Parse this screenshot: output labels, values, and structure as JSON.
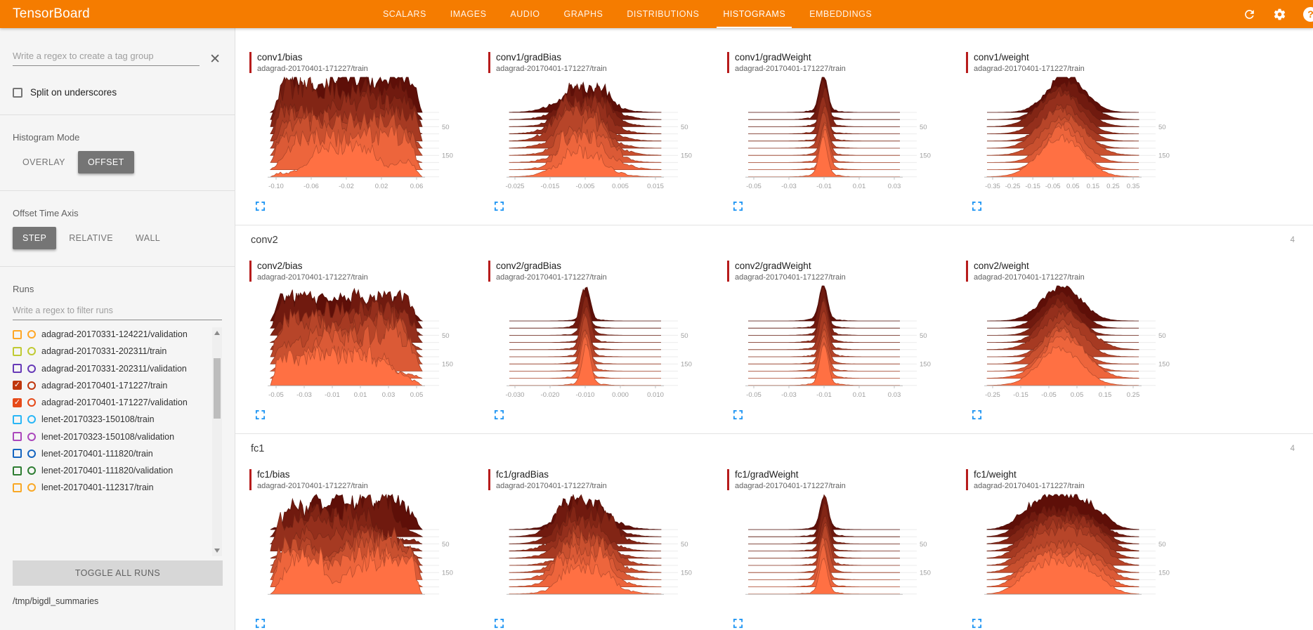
{
  "palette": {
    "header_bg": "#f57c00",
    "accent_red": "#b71c1c",
    "hist_back": "#5e0f08",
    "hist_front": "#ff7043",
    "expand_blue": "#2196f3",
    "selected_button_bg": "#757575"
  },
  "header": {
    "title": "TensorBoard",
    "help_glyph": "?",
    "tabs": [
      {
        "label": "SCALARS",
        "active": false
      },
      {
        "label": "IMAGES",
        "active": false
      },
      {
        "label": "AUDIO",
        "active": false
      },
      {
        "label": "GRAPHS",
        "active": false
      },
      {
        "label": "DISTRIBUTIONS",
        "active": false
      },
      {
        "label": "HISTOGRAMS",
        "active": true
      },
      {
        "label": "EMBEDDINGS",
        "active": false
      }
    ]
  },
  "sidebar": {
    "tag_regex_placeholder": "Write a regex to create a tag group",
    "clear_icon": "✕",
    "split_label": "Split on underscores",
    "histogram_mode": {
      "label": "Histogram Mode",
      "options": [
        "OVERLAY",
        "OFFSET"
      ],
      "selected": "OFFSET"
    },
    "offset_time_axis": {
      "label": "Offset Time Axis",
      "options": [
        "STEP",
        "RELATIVE",
        "WALL"
      ],
      "selected": "STEP"
    },
    "runs": {
      "label": "Runs",
      "filter_placeholder": "Write a regex to filter runs",
      "toggle_all_label": "TOGGLE ALL RUNS",
      "items": [
        {
          "label": "adagrad-20170331-124221/validation",
          "color": "#ffa726",
          "checked": false
        },
        {
          "label": "adagrad-20170331-202311/train",
          "color": "#c0ca33",
          "checked": false
        },
        {
          "label": "adagrad-20170331-202311/validation",
          "color": "#673ab7",
          "checked": false
        },
        {
          "label": "adagrad-20170401-171227/train",
          "color": "#bf360c",
          "checked": true
        },
        {
          "label": "adagrad-20170401-171227/validation",
          "color": "#e64a19",
          "checked": true
        },
        {
          "label": "lenet-20170323-150108/train",
          "color": "#29b6f6",
          "checked": false
        },
        {
          "label": "lenet-20170323-150108/validation",
          "color": "#ab47bc",
          "checked": false
        },
        {
          "label": "lenet-20170401-111820/train",
          "color": "#1565c0",
          "checked": false
        },
        {
          "label": "lenet-20170401-111820/validation",
          "color": "#2e7d32",
          "checked": false
        },
        {
          "label": "lenet-20170401-112317/train",
          "color": "#f9a825",
          "checked": false
        }
      ]
    },
    "log_dir": "/tmp/bigdl_summaries"
  },
  "main": {
    "sections": [
      {
        "cards": [
          {
            "title": "conv1/bias",
            "run": "adagrad-20170401-171227/train",
            "shape": "noisy",
            "seed": 11,
            "x_ticks": [
              "-0.10",
              "-0.06",
              "-0.02",
              "0.02",
              "0.06"
            ],
            "y_labels": [
              "50",
              "150"
            ]
          },
          {
            "title": "conv1/gradBias",
            "run": "adagrad-20170401-171227/train",
            "shape": "multi",
            "seed": 12,
            "x_ticks": [
              "-0.025",
              "-0.015",
              "-0.005",
              "0.005",
              "0.015"
            ],
            "y_labels": [
              "50",
              "150"
            ]
          },
          {
            "title": "conv1/gradWeight",
            "run": "adagrad-20170401-171227/train",
            "shape": "spike",
            "seed": 13,
            "x_ticks": [
              "-0.05",
              "-0.03",
              "-0.01",
              "0.01",
              "0.03"
            ],
            "y_labels": [
              "50",
              "150"
            ]
          },
          {
            "title": "conv1/weight",
            "run": "adagrad-20170401-171227/train",
            "shape": "bell",
            "seed": 14,
            "x_ticks": [
              "-0.35",
              "-0.25",
              "-0.15",
              "-0.05",
              "0.05",
              "0.15",
              "0.25",
              "0.35"
            ],
            "y_labels": [
              "50",
              "150"
            ]
          }
        ]
      },
      {
        "name": "conv2",
        "count": "4",
        "cards": [
          {
            "title": "conv2/bias",
            "run": "adagrad-20170401-171227/train",
            "shape": "noisy",
            "seed": 21,
            "x_ticks": [
              "-0.05",
              "-0.03",
              "-0.01",
              "0.01",
              "0.03",
              "0.05"
            ],
            "y_labels": [
              "50",
              "150"
            ]
          },
          {
            "title": "conv2/gradBias",
            "run": "adagrad-20170401-171227/train",
            "shape": "spike",
            "seed": 22,
            "x_ticks": [
              "-0.030",
              "-0.020",
              "-0.010",
              "0.000",
              "0.010"
            ],
            "y_labels": [
              "50",
              "150"
            ]
          },
          {
            "title": "conv2/gradWeight",
            "run": "adagrad-20170401-171227/train",
            "shape": "spike",
            "seed": 23,
            "x_ticks": [
              "-0.05",
              "-0.03",
              "-0.01",
              "0.01",
              "0.03"
            ],
            "y_labels": [
              "50",
              "150"
            ]
          },
          {
            "title": "conv2/weight",
            "run": "adagrad-20170401-171227/train",
            "shape": "bell",
            "seed": 24,
            "x_ticks": [
              "-0.25",
              "-0.15",
              "-0.05",
              "0.05",
              "0.15",
              "0.25"
            ],
            "y_labels": [
              "50",
              "150"
            ]
          }
        ]
      },
      {
        "name": "fc1",
        "count": "4",
        "cards": [
          {
            "title": "fc1/bias",
            "run": "adagrad-20170401-171227/train",
            "shape": "noisy",
            "seed": 31,
            "x_ticks": [],
            "y_labels": [
              "50",
              "150"
            ]
          },
          {
            "title": "fc1/gradBias",
            "run": "adagrad-20170401-171227/train",
            "shape": "multi",
            "seed": 32,
            "x_ticks": [],
            "y_labels": [
              "50",
              "150"
            ]
          },
          {
            "title": "fc1/gradWeight",
            "run": "adagrad-20170401-171227/train",
            "shape": "spike",
            "seed": 33,
            "x_ticks": [],
            "y_labels": [
              "50",
              "150"
            ]
          },
          {
            "title": "fc1/weight",
            "run": "adagrad-20170401-171227/train",
            "shape": "plateau",
            "seed": 34,
            "x_ticks": [],
            "y_labels": [
              "50",
              "150"
            ]
          }
        ]
      }
    ]
  }
}
